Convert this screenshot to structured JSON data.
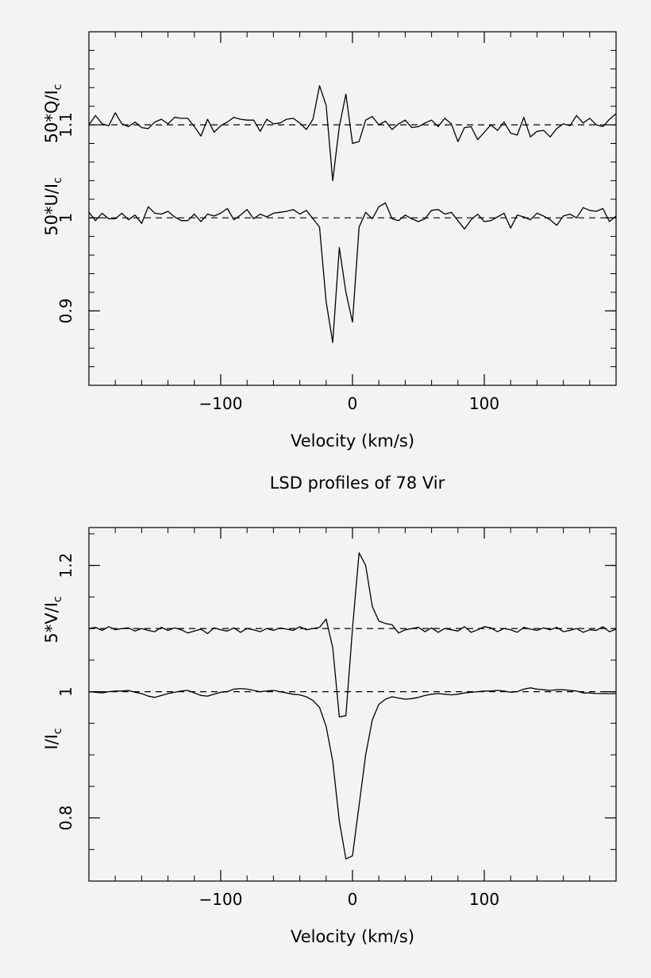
{
  "title": "LSD profiles of 78 Vir",
  "chart_data": [
    {
      "type": "line",
      "xlabel": "Velocity (km/s)",
      "ylabel_upper": "50*Q/I",
      "ylabel_lower": "50*U/I",
      "ylabel_sub": "c",
      "xlim": [
        -200,
        200
      ],
      "ylim": [
        0.82,
        1.2
      ],
      "x_ticks": [
        -100,
        0,
        100
      ],
      "x_tick_labels": [
        "−100",
        "0",
        "100"
      ],
      "y_ticks": [
        0.9,
        1.0,
        1.1
      ],
      "y_tick_labels": [
        "0.9",
        "1",
        "1.1"
      ],
      "reference_lines": [
        1.1,
        1.0
      ],
      "x": [
        -200,
        -195,
        -190,
        -185,
        -180,
        -175,
        -170,
        -165,
        -160,
        -155,
        -150,
        -145,
        -140,
        -135,
        -130,
        -125,
        -120,
        -115,
        -110,
        -105,
        -100,
        -95,
        -90,
        -85,
        -80,
        -75,
        -70,
        -65,
        -60,
        -55,
        -50,
        -45,
        -40,
        -35,
        -30,
        -25,
        -20,
        -15,
        -10,
        -5,
        0,
        5,
        10,
        15,
        20,
        25,
        30,
        35,
        40,
        45,
        50,
        55,
        60,
        65,
        70,
        75,
        80,
        85,
        90,
        95,
        100,
        105,
        110,
        115,
        120,
        125,
        130,
        135,
        140,
        145,
        150,
        155,
        160,
        165,
        170,
        175,
        180,
        185,
        190,
        195,
        200
      ],
      "series": [
        {
          "values": [
            1.1,
            1.11,
            1.101,
            1.099,
            1.113,
            1.101,
            1.098,
            1.103,
            1.097,
            1.096,
            1.103,
            1.106,
            1.101,
            1.108,
            1.107,
            1.107,
            1.098,
            1.088,
            1.106,
            1.092,
            1.099,
            1.103,
            1.108,
            1.106,
            1.105,
            1.105,
            1.093,
            1.106,
            1.101,
            1.102,
            1.106,
            1.107,
            1.102,
            1.095,
            1.106,
            1.142,
            1.121,
            1.04,
            1.098,
            1.133,
            1.08,
            1.082,
            1.105,
            1.109,
            1.1,
            1.104,
            1.095,
            1.101,
            1.105,
            1.097,
            1.098,
            1.102,
            1.105,
            1.098,
            1.107,
            1.101,
            1.082,
            1.097,
            1.098,
            1.084,
            1.092,
            1.1,
            1.094,
            1.103,
            1.091,
            1.089,
            1.108,
            1.087,
            1.093,
            1.094,
            1.087,
            1.096,
            1.101,
            1.099,
            1.11,
            1.102,
            1.107,
            1.1,
            1.098,
            1.106,
            1.112
          ]
        },
        {
          "values": [
            1.006,
            0.997,
            1.005,
            0.999,
            0.999,
            1.005,
            0.998,
            1.003,
            0.994,
            1.012,
            1.005,
            1.004,
            1.007,
            1.001,
            0.997,
            0.997,
            1.004,
            0.996,
            1.004,
            1.002,
            1.005,
            1.01,
            0.998,
            1.003,
            1.009,
            0.999,
            1.004,
            1.001,
            1.005,
            1.006,
            1.007,
            1.009,
            1.004,
            1.008,
            0.999,
            0.99,
            0.91,
            0.866,
            0.968,
            0.92,
            0.888,
            0.99,
            1.006,
            0.999,
            1.012,
            1.016,
            0.999,
            0.997,
            1.003,
            0.999,
            0.996,
            0.999,
            1.008,
            1.009,
            1.004,
            1.006,
            0.997,
            0.988,
            0.998,
            1.004,
            0.996,
            0.997,
            1.001,
            1.005,
            0.989,
            1.003,
            1.001,
            0.998,
            1.005,
            1.002,
            0.998,
            0.992,
            1.002,
            1.004,
            1.0,
            1.011,
            1.008,
            1.007,
            1.01,
            0.996,
            1.002
          ]
        }
      ]
    },
    {
      "type": "line",
      "xlabel": "Velocity (km/s)",
      "ylabel_upper": "5*V/I",
      "ylabel_lower": "I/I",
      "ylabel_sub": "c",
      "xlim": [
        -200,
        200
      ],
      "ylim": [
        0.7,
        1.26
      ],
      "x_ticks": [
        -100,
        0,
        100
      ],
      "x_tick_labels": [
        "−100",
        "0",
        "100"
      ],
      "y_ticks": [
        0.8,
        1.0,
        1.2
      ],
      "y_tick_labels": [
        "0.8",
        "1",
        "1.2"
      ],
      "reference_lines": [
        1.1,
        1.0
      ],
      "x": [
        -200,
        -195,
        -190,
        -185,
        -180,
        -175,
        -170,
        -165,
        -160,
        -155,
        -150,
        -145,
        -140,
        -135,
        -130,
        -125,
        -120,
        -115,
        -110,
        -105,
        -100,
        -95,
        -90,
        -85,
        -80,
        -75,
        -70,
        -65,
        -60,
        -55,
        -50,
        -45,
        -40,
        -35,
        -30,
        -25,
        -20,
        -15,
        -10,
        -5,
        0,
        5,
        10,
        15,
        20,
        25,
        30,
        35,
        40,
        45,
        50,
        55,
        60,
        65,
        70,
        75,
        80,
        85,
        90,
        95,
        100,
        105,
        110,
        115,
        120,
        125,
        130,
        135,
        140,
        145,
        150,
        155,
        160,
        165,
        170,
        175,
        180,
        185,
        190,
        195,
        200
      ],
      "series": [
        {
          "values": [
            1.1,
            1.102,
            1.097,
            1.103,
            1.098,
            1.1,
            1.101,
            1.096,
            1.1,
            1.097,
            1.095,
            1.102,
            1.097,
            1.101,
            1.098,
            1.093,
            1.096,
            1.099,
            1.092,
            1.101,
            1.098,
            1.096,
            1.101,
            1.094,
            1.1,
            1.098,
            1.095,
            1.1,
            1.097,
            1.101,
            1.099,
            1.097,
            1.103,
            1.098,
            1.1,
            1.102,
            1.115,
            1.07,
            0.96,
            0.962,
            1.1,
            1.22,
            1.2,
            1.135,
            1.112,
            1.108,
            1.106,
            1.093,
            1.098,
            1.1,
            1.102,
            1.095,
            1.101,
            1.094,
            1.1,
            1.098,
            1.096,
            1.103,
            1.094,
            1.098,
            1.103,
            1.101,
            1.095,
            1.1,
            1.098,
            1.094,
            1.102,
            1.099,
            1.097,
            1.101,
            1.098,
            1.102,
            1.095,
            1.097,
            1.1,
            1.094,
            1.098,
            1.097,
            1.103,
            1.095,
            1.099
          ]
        },
        {
          "values": [
            1.0,
            0.999,
            0.998,
            1.0,
            1.001,
            1.001,
            1.002,
            0.999,
            0.997,
            0.993,
            0.991,
            0.994,
            0.997,
            0.999,
            1.001,
            1.002,
            0.998,
            0.994,
            0.993,
            0.996,
            0.999,
            1.0,
            1.004,
            1.005,
            1.004,
            1.002,
            1.0,
            1.001,
            1.002,
            1.0,
            0.998,
            0.996,
            0.995,
            0.992,
            0.986,
            0.975,
            0.945,
            0.89,
            0.795,
            0.735,
            0.74,
            0.82,
            0.9,
            0.955,
            0.98,
            0.988,
            0.992,
            0.99,
            0.988,
            0.989,
            0.991,
            0.994,
            0.996,
            0.997,
            0.996,
            0.995,
            0.996,
            0.998,
            0.999,
            1.0,
            1.001,
            1.001,
            1.002,
            1.001,
            0.999,
            1.0,
            1.004,
            1.006,
            1.004,
            1.003,
            1.002,
            1.003,
            1.003,
            1.002,
            1.001,
            0.998,
            0.998,
            0.997,
            0.997,
            0.997,
            0.997
          ]
        }
      ]
    }
  ]
}
